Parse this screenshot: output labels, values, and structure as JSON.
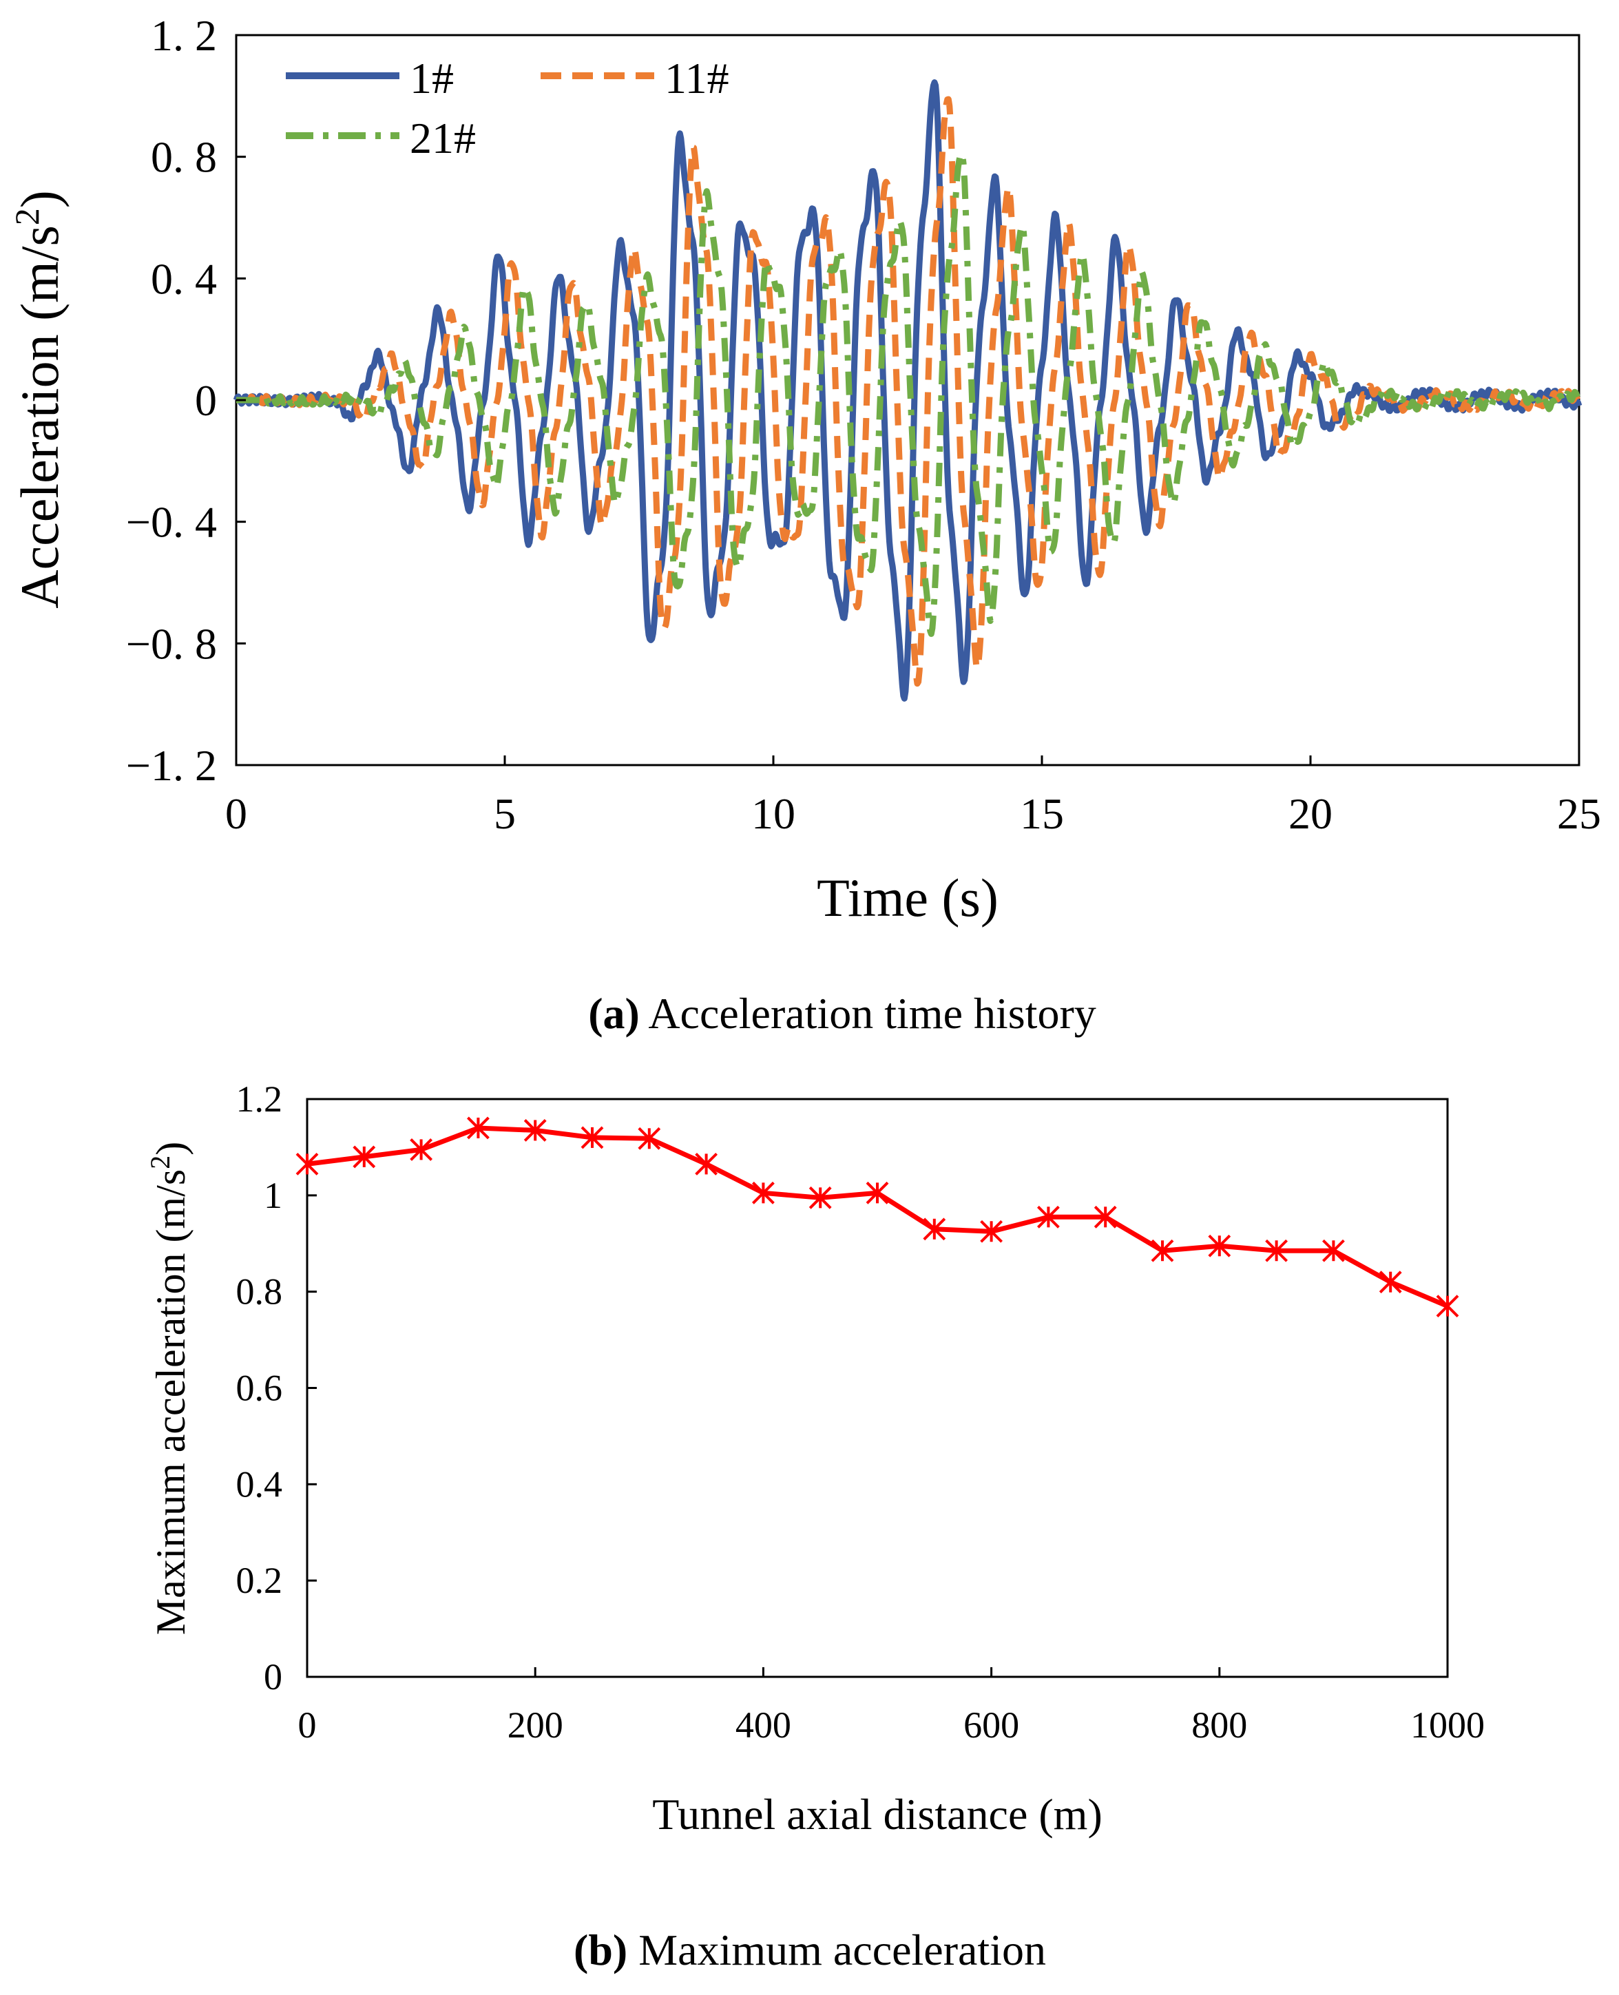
{
  "chart_data": [
    {
      "id": "a",
      "type": "line",
      "caption_label": "(a)",
      "caption_text": " Acceleration time history",
      "xlabel": "Time (s)",
      "ylabel": "Acceleration (m/s²)",
      "xlim": [
        0,
        25
      ],
      "ylim": [
        -1.2,
        1.2
      ],
      "xticks": [
        0,
        5,
        10,
        15,
        20,
        25
      ],
      "yticks": [
        1.2,
        0.8,
        0.4,
        0,
        -0.4,
        -0.8,
        -1.2
      ],
      "ytick_labels": [
        "1. 2",
        "0. 8",
        "0. 4",
        "0",
        "−0. 4",
        "−0. 8",
        "−1. 2"
      ],
      "legend_position": "top-left",
      "grid": false,
      "series": [
        {
          "name": "1#",
          "color": "#3A5BA0",
          "dash": "solid",
          "delay": 0,
          "peak": 1.05,
          "envelope_scale": 1.0
        },
        {
          "name": "11#",
          "color": "#ED7D31",
          "dash": "dash",
          "delay": 0.25,
          "peak": 1.0,
          "envelope_scale": 0.95
        },
        {
          "name": "21#",
          "color": "#70AD47",
          "dash": "dashdot",
          "delay": 0.5,
          "peak": 0.77,
          "envelope_scale": 0.78
        }
      ],
      "signal_envelope": {
        "t": [
          0,
          1.9,
          2.2,
          3.2,
          4.3,
          5,
          6,
          7,
          8,
          9,
          10,
          11,
          12,
          12.6,
          13.2,
          14,
          15,
          16,
          17,
          18,
          19,
          19.8,
          20.3,
          21,
          25
        ],
        "a": [
          0,
          0.01,
          0.08,
          0.22,
          0.32,
          0.46,
          0.38,
          0.42,
          0.95,
          0.72,
          0.55,
          0.78,
          0.8,
          1.05,
          1.02,
          0.7,
          0.55,
          0.55,
          0.38,
          0.25,
          0.2,
          0.15,
          0.1,
          0.03,
          0.02
        ]
      },
      "dominant_period_s": 1.15
    },
    {
      "id": "b",
      "type": "line",
      "caption_label": "(b)",
      "caption_text": " Maximum acceleration",
      "xlabel": "Tunnel axial distance (m)",
      "ylabel": "Maximum acceleration (m/s²)",
      "xlim": [
        0,
        1000
      ],
      "ylim": [
        0,
        1.2
      ],
      "xticks": [
        0,
        200,
        400,
        600,
        800,
        1000
      ],
      "yticks": [
        0,
        0.2,
        0.4,
        0.6,
        0.8,
        1,
        1.2
      ],
      "ytick_labels": [
        "0",
        "0.2",
        "0.4",
        "0.6",
        "0.8",
        "1",
        "1.2"
      ],
      "grid": false,
      "series": [
        {
          "name": "Maximum acceleration",
          "color": "#FF0000",
          "marker": "asterisk",
          "x": [
            0,
            50,
            100,
            150,
            200,
            250,
            300,
            350,
            400,
            450,
            500,
            550,
            600,
            650,
            700,
            750,
            800,
            850,
            900,
            950,
            1000
          ],
          "y": [
            1.065,
            1.08,
            1.095,
            1.14,
            1.135,
            1.12,
            1.118,
            1.065,
            1.005,
            0.995,
            1.005,
            0.93,
            0.925,
            0.955,
            0.955,
            0.885,
            0.895,
            0.885,
            0.885,
            0.82,
            0.77
          ]
        }
      ]
    }
  ]
}
